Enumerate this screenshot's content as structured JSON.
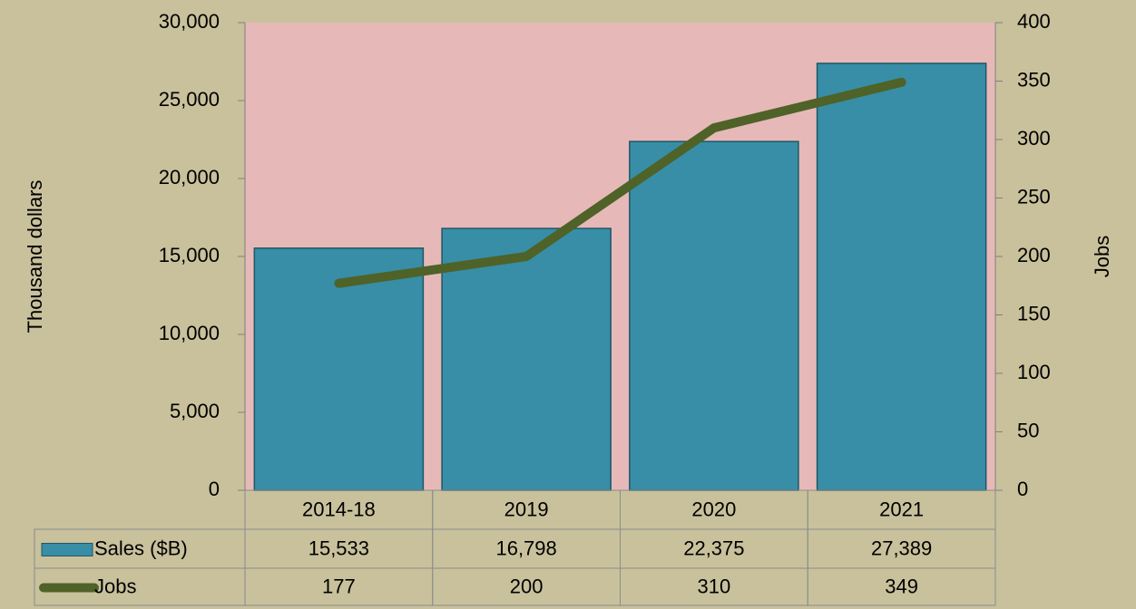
{
  "chart_data": {
    "type": "bar",
    "categories": [
      "2014-18",
      "2019",
      "2020",
      "2021"
    ],
    "series": [
      {
        "name": "Sales  ($B)",
        "type": "bar",
        "color": "#378ea6",
        "values": [
          15533,
          16798,
          22375,
          27389
        ],
        "value_labels": [
          "15,533",
          "16,798",
          "22,375",
          "27,389"
        ]
      },
      {
        "name": "Jobs",
        "type": "line",
        "axis": "y2",
        "color": "#4f6228",
        "values": [
          177,
          200,
          310,
          349
        ]
      }
    ],
    "ylabel": "Thousand dollars",
    "y2label": "Jobs",
    "ylim": [
      0,
      30000
    ],
    "yticks": [
      0,
      {
        "value": 5000,
        "label": "5,000"
      },
      {
        "value": 10000,
        "label": "10,000"
      },
      {
        "value": 15000,
        "label": "15,000"
      },
      {
        "value": 20000,
        "label": "20,000"
      },
      {
        "value": 25000,
        "label": "25,000"
      },
      {
        "value": 30000,
        "label": "30,000"
      }
    ],
    "y2lim": [
      0,
      400
    ],
    "y2ticks": [
      0,
      50,
      100,
      150,
      200,
      250,
      300,
      350,
      400
    ],
    "grid": false,
    "plot_background": "#e6b9b8"
  }
}
